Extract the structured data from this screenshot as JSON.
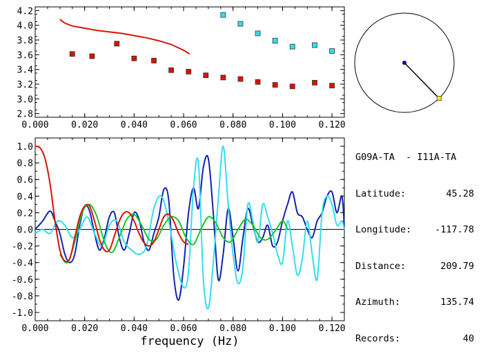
{
  "info": {
    "title": "G09A-TA  - I11A-TA",
    "rows": [
      {
        "label": "Latitude:",
        "value": "45.28"
      },
      {
        "label": "Longitude:",
        "value": "-117.78"
      },
      {
        "label": "Distance:",
        "value": "209.79"
      },
      {
        "label": "Azimuth:",
        "value": "135.74"
      },
      {
        "label": "Records:",
        "value": "40"
      }
    ]
  },
  "chart_data": [
    {
      "type": "scatter",
      "title": "",
      "xlabel": "",
      "ylabel": "",
      "xlim": [
        0.0,
        0.125
      ],
      "ylim": [
        2.75,
        4.25
      ],
      "xticks": [
        "0.000",
        "0.020",
        "0.040",
        "0.060",
        "0.080",
        "0.100",
        "0.120"
      ],
      "yticks": [
        "2.8",
        "3.0",
        "3.2",
        "3.4",
        "3.6",
        "3.8",
        "4.0",
        "4.2"
      ],
      "colors": {
        "red": "#dd1100",
        "cyan": "#33ddee",
        "curve": "#dd1100"
      },
      "series": [
        {
          "marker": "square",
          "color": "#dd1100",
          "x": [
            0.015,
            0.023,
            0.033,
            0.04,
            0.048,
            0.055,
            0.062,
            0.069,
            0.076,
            0.083,
            0.09,
            0.097,
            0.104,
            0.113,
            0.12
          ],
          "y": [
            3.61,
            3.58,
            3.75,
            3.55,
            3.52,
            3.39,
            3.37,
            3.32,
            3.29,
            3.27,
            3.23,
            3.19,
            3.17,
            3.22,
            3.18
          ]
        },
        {
          "marker": "square",
          "color": "#33ddee",
          "x": [
            0.076,
            0.083,
            0.09,
            0.097,
            0.104,
            0.113,
            0.12
          ],
          "y": [
            4.14,
            4.02,
            3.89,
            3.79,
            3.71,
            3.73,
            3.65
          ]
        },
        {
          "marker": "line",
          "color": "#dd1100",
          "x": [
            0.01,
            0.012,
            0.015,
            0.02,
            0.025,
            0.03,
            0.035,
            0.04,
            0.045,
            0.05,
            0.055,
            0.06,
            0.0625
          ],
          "y": [
            4.08,
            4.03,
            3.99,
            3.96,
            3.93,
            3.91,
            3.89,
            3.86,
            3.83,
            3.79,
            3.74,
            3.66,
            3.61
          ]
        }
      ]
    },
    {
      "type": "line",
      "title": "",
      "xlabel": "frequency (Hz)",
      "ylabel": "",
      "xlim": [
        0.0,
        0.125
      ],
      "ylim": [
        -1.1,
        1.1
      ],
      "xticks": [
        "0.000",
        "0.020",
        "0.040",
        "0.060",
        "0.080",
        "0.100",
        "0.120"
      ],
      "yticks": [
        "1.0",
        "0.8",
        "0.6",
        "0.4",
        "0.2",
        "0.0",
        "-0.2",
        "-0.4",
        "-0.6",
        "-0.8",
        "-1.0"
      ],
      "series": [
        {
          "color": "#1122aa",
          "x": [
            0.0,
            0.003,
            0.006,
            0.008,
            0.01,
            0.012,
            0.014,
            0.016,
            0.018,
            0.02,
            0.022,
            0.024,
            0.026,
            0.028,
            0.03,
            0.032,
            0.034,
            0.036,
            0.038,
            0.04,
            0.042,
            0.044,
            0.046,
            0.048,
            0.05,
            0.052,
            0.054,
            0.056,
            0.058,
            0.06,
            0.062,
            0.064,
            0.066,
            0.068,
            0.07,
            0.072,
            0.074,
            0.076,
            0.078,
            0.08,
            0.082,
            0.084,
            0.086,
            0.088,
            0.09,
            0.092,
            0.094,
            0.096,
            0.098,
            0.1,
            0.102,
            0.104,
            0.106,
            0.108,
            0.11,
            0.112,
            0.114,
            0.116,
            0.118,
            0.12,
            0.122,
            0.124,
            0.125
          ],
          "y": [
            0.0,
            0.1,
            0.22,
            0.1,
            -0.05,
            -0.3,
            -0.4,
            -0.3,
            0.05,
            0.28,
            0.22,
            -0.05,
            -0.25,
            -0.1,
            0.15,
            0.2,
            -0.1,
            -0.25,
            -0.05,
            0.2,
            0.12,
            -0.15,
            -0.25,
            -0.05,
            0.15,
            0.48,
            0.35,
            -0.55,
            -0.85,
            -0.45,
            0.2,
            0.5,
            0.25,
            0.75,
            0.85,
            0.2,
            -0.6,
            -0.3,
            0.25,
            -0.1,
            -0.5,
            -0.1,
            0.25,
            0.05,
            -0.15,
            -0.1,
            0.05,
            -0.2,
            -0.15,
            0.1,
            0.3,
            0.45,
            0.2,
            0.15,
            0.0,
            -0.1,
            0.1,
            0.2,
            0.4,
            0.45,
            0.2,
            0.4,
            0.02
          ]
        },
        {
          "color": "#33ddee",
          "x": [
            0.0,
            0.003,
            0.006,
            0.009,
            0.012,
            0.015,
            0.018,
            0.021,
            0.024,
            0.027,
            0.03,
            0.033,
            0.036,
            0.039,
            0.042,
            0.045,
            0.048,
            0.051,
            0.054,
            0.057,
            0.06,
            0.062,
            0.064,
            0.066,
            0.068,
            0.07,
            0.072,
            0.074,
            0.076,
            0.078,
            0.08,
            0.082,
            0.084,
            0.086,
            0.088,
            0.09,
            0.092,
            0.094,
            0.096,
            0.098,
            0.1,
            0.102,
            0.104,
            0.106,
            0.108,
            0.11,
            0.112,
            0.114,
            0.116,
            0.118,
            0.12,
            0.122,
            0.124,
            0.125
          ],
          "y": [
            -0.05,
            0.0,
            -0.05,
            0.1,
            0.05,
            -0.1,
            0.0,
            0.15,
            -0.05,
            -0.2,
            0.05,
            0.1,
            -0.15,
            -0.25,
            -0.3,
            -0.2,
            0.25,
            0.4,
            0.1,
            -0.4,
            -0.7,
            -0.5,
            0.5,
            0.8,
            -0.6,
            -0.95,
            -0.4,
            0.35,
            1.0,
            0.3,
            -0.3,
            -0.65,
            -0.45,
            0.3,
            0.1,
            -0.15,
            0.3,
            0.15,
            -0.05,
            -0.3,
            -0.4,
            0.1,
            -0.2,
            -0.55,
            -0.35,
            0.1,
            -0.3,
            -0.6,
            0.2,
            0.4,
            0.3,
            0.05,
            0.1,
            0.0
          ]
        },
        {
          "color": "#11cc22",
          "x": [
            0.01,
            0.013,
            0.016,
            0.019,
            0.022,
            0.025,
            0.028,
            0.031,
            0.034,
            0.037,
            0.04,
            0.043,
            0.046,
            0.049,
            0.052,
            0.055,
            0.058,
            0.061,
            0.064,
            0.067,
            0.07,
            0.073,
            0.076,
            0.079,
            0.082,
            0.085,
            0.088,
            0.091,
            0.094,
            0.097,
            0.1,
            0.102
          ],
          "y": [
            -0.3,
            -0.4,
            -0.15,
            0.2,
            0.3,
            0.15,
            -0.15,
            -0.28,
            -0.1,
            0.12,
            0.18,
            0.05,
            -0.12,
            -0.12,
            0.05,
            0.15,
            0.1,
            -0.1,
            -0.18,
            0.0,
            0.15,
            0.08,
            -0.1,
            -0.15,
            0.0,
            0.12,
            0.05,
            -0.1,
            -0.12,
            -0.02,
            0.1,
            0.0
          ]
        },
        {
          "color": "#dd1100",
          "x": [
            0.0,
            0.002,
            0.004,
            0.006,
            0.008,
            0.01,
            0.012,
            0.014,
            0.016,
            0.018,
            0.02,
            0.022,
            0.024,
            0.026,
            0.028,
            0.03,
            0.032,
            0.034,
            0.036,
            0.038,
            0.04,
            0.042,
            0.044,
            0.046,
            0.048,
            0.05,
            0.052,
            0.054,
            0.056,
            0.058,
            0.06,
            0.062
          ],
          "y": [
            1.0,
            0.98,
            0.85,
            0.55,
            0.1,
            -0.25,
            -0.38,
            -0.35,
            -0.1,
            0.15,
            0.28,
            0.28,
            0.1,
            -0.12,
            -0.25,
            -0.25,
            -0.08,
            0.1,
            0.2,
            0.2,
            0.1,
            -0.05,
            -0.16,
            -0.2,
            -0.15,
            0.0,
            0.15,
            0.18,
            0.1,
            -0.05,
            -0.15,
            -0.18
          ]
        }
      ]
    },
    {
      "type": "scatter",
      "title": "",
      "description_colors": {
        "center": "#000088",
        "endpoint": "#ffee00"
      },
      "azimuth_deg": 135.74,
      "note": "circle with radius line showing azimuth"
    }
  ]
}
